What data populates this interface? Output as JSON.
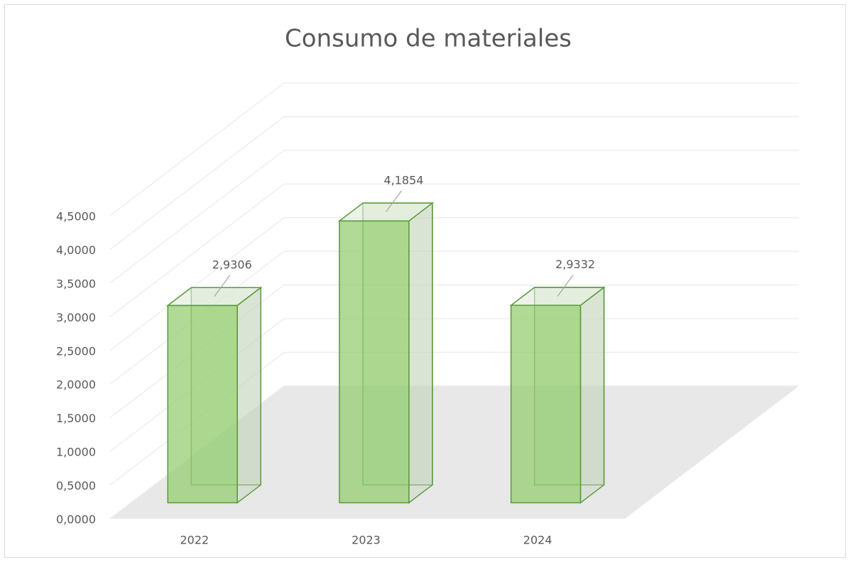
{
  "chart_data": {
    "type": "bar3d",
    "title": "Consumo de materiales",
    "categories": [
      "2022",
      "2023",
      "2024"
    ],
    "values": [
      2.9306,
      4.1854,
      2.9332
    ],
    "value_labels": [
      "2,9306",
      "4,1854",
      "2,9332"
    ],
    "color": "#a9d18e",
    "ylim": [
      0,
      4.5
    ],
    "yticks": [
      {
        "value": 0,
        "label": "0,0000"
      },
      {
        "value": 0.5,
        "label": "0,5000"
      },
      {
        "value": 1,
        "label": "1,0000"
      },
      {
        "value": 1.5,
        "label": "1,5000"
      },
      {
        "value": 2,
        "label": "2,0000"
      },
      {
        "value": 2.5,
        "label": "2,5000"
      },
      {
        "value": 3,
        "label": "3,0000"
      },
      {
        "value": 3.5,
        "label": "3,5000"
      },
      {
        "value": 4,
        "label": "4,0000"
      },
      {
        "value": 4.5,
        "label": "4,5000"
      }
    ],
    "grid": true
  }
}
